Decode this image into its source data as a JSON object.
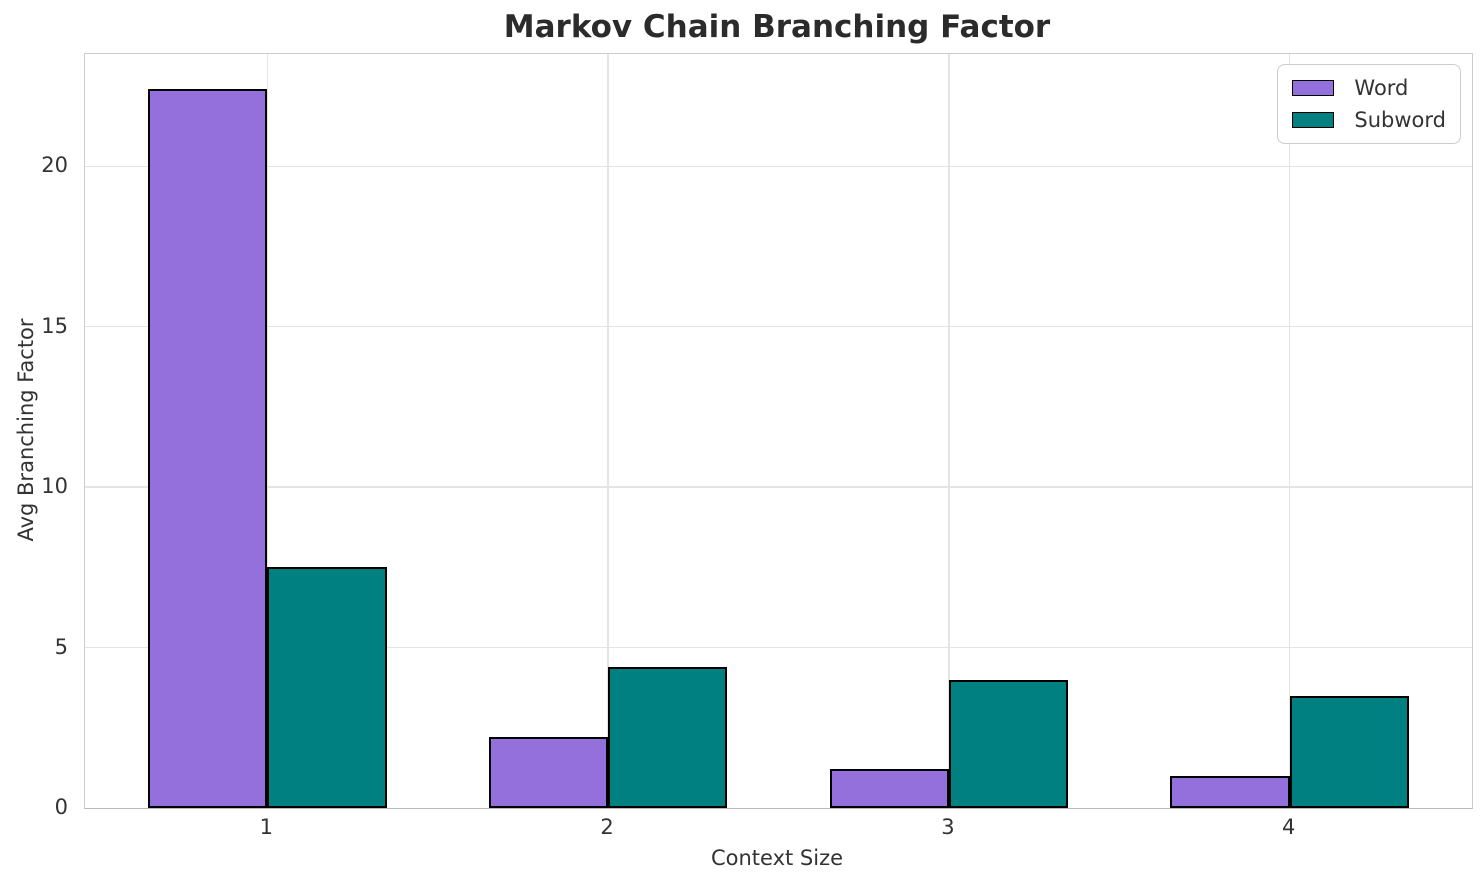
{
  "chart_data": {
    "type": "bar",
    "title": "Markov Chain Branching Factor",
    "xlabel": "Context Size",
    "ylabel": "Avg Branching Factor",
    "categories": [
      "1",
      "2",
      "3",
      "4"
    ],
    "series": [
      {
        "name": "Word",
        "color": "#9370DB",
        "values": [
          22.4,
          2.2,
          1.2,
          1.0
        ]
      },
      {
        "name": "Subword",
        "color": "#008080",
        "values": [
          7.5,
          4.4,
          4.0,
          3.5
        ]
      }
    ],
    "yticks": [
      0,
      5,
      10,
      15,
      20
    ],
    "ylim": [
      0,
      23.5
    ],
    "grid": true,
    "legend_position": "upper right",
    "bar_edge_color": "#000000",
    "grid_color": "#e4e4e4",
    "spine_color": "#cccccc"
  }
}
